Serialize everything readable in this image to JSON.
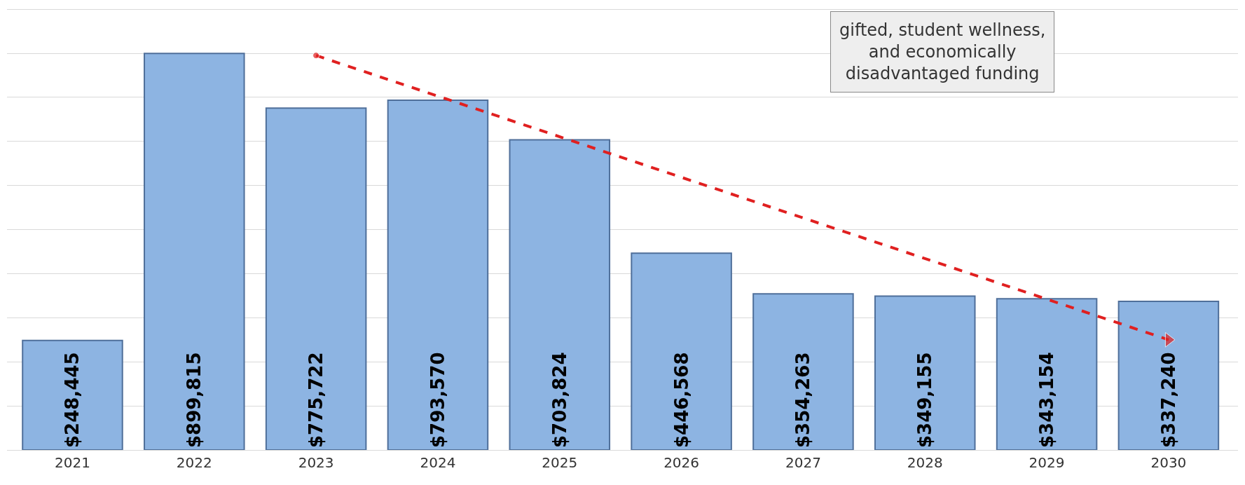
{
  "chart_data": {
    "type": "bar",
    "categories": [
      "2021",
      "2022",
      "2023",
      "2024",
      "2025",
      "2026",
      "2027",
      "2028",
      "2029",
      "2030"
    ],
    "series": [
      {
        "color": "#8db4e2",
        "values": [
          248445,
          899815,
          775722,
          793570,
          703824,
          446568,
          354263,
          349155,
          343154,
          337240
        ],
        "value_labels": [
          "$248,445",
          "$899,815",
          "$775,722",
          "$793,570",
          "$703,824",
          "$446,568",
          "$354,263",
          "$349,155",
          "$343,154",
          "$337,240"
        ]
      },
      {
        "type": "line",
        "color": "#e02020",
        "line_style": "dashed",
        "marker": "circle",
        "values": [
          null,
          null,
          895000,
          null,
          null,
          null,
          null,
          null,
          null,
          250000
        ]
      }
    ],
    "ylim": [
      0,
      1005000
    ],
    "yticks": [
      {
        "value": 0,
        "label": null
      },
      {
        "value": 100000,
        "label": null
      },
      {
        "value": 200000,
        "label": null
      },
      {
        "value": 300000,
        "label": null
      },
      {
        "value": 400000,
        "label": null
      },
      {
        "value": 500000,
        "label": null
      },
      {
        "value": 600000,
        "label": null
      },
      {
        "value": 700000,
        "label": null
      },
      {
        "value": 800000,
        "label": null
      },
      {
        "value": 900000,
        "label": null
      },
      {
        "value": 1000000,
        "label": null
      }
    ],
    "tick_labels": "x",
    "grid": "y",
    "annotations": [
      "gifted, student wellness,\nand economically\ndisadvantaged funding"
    ]
  }
}
